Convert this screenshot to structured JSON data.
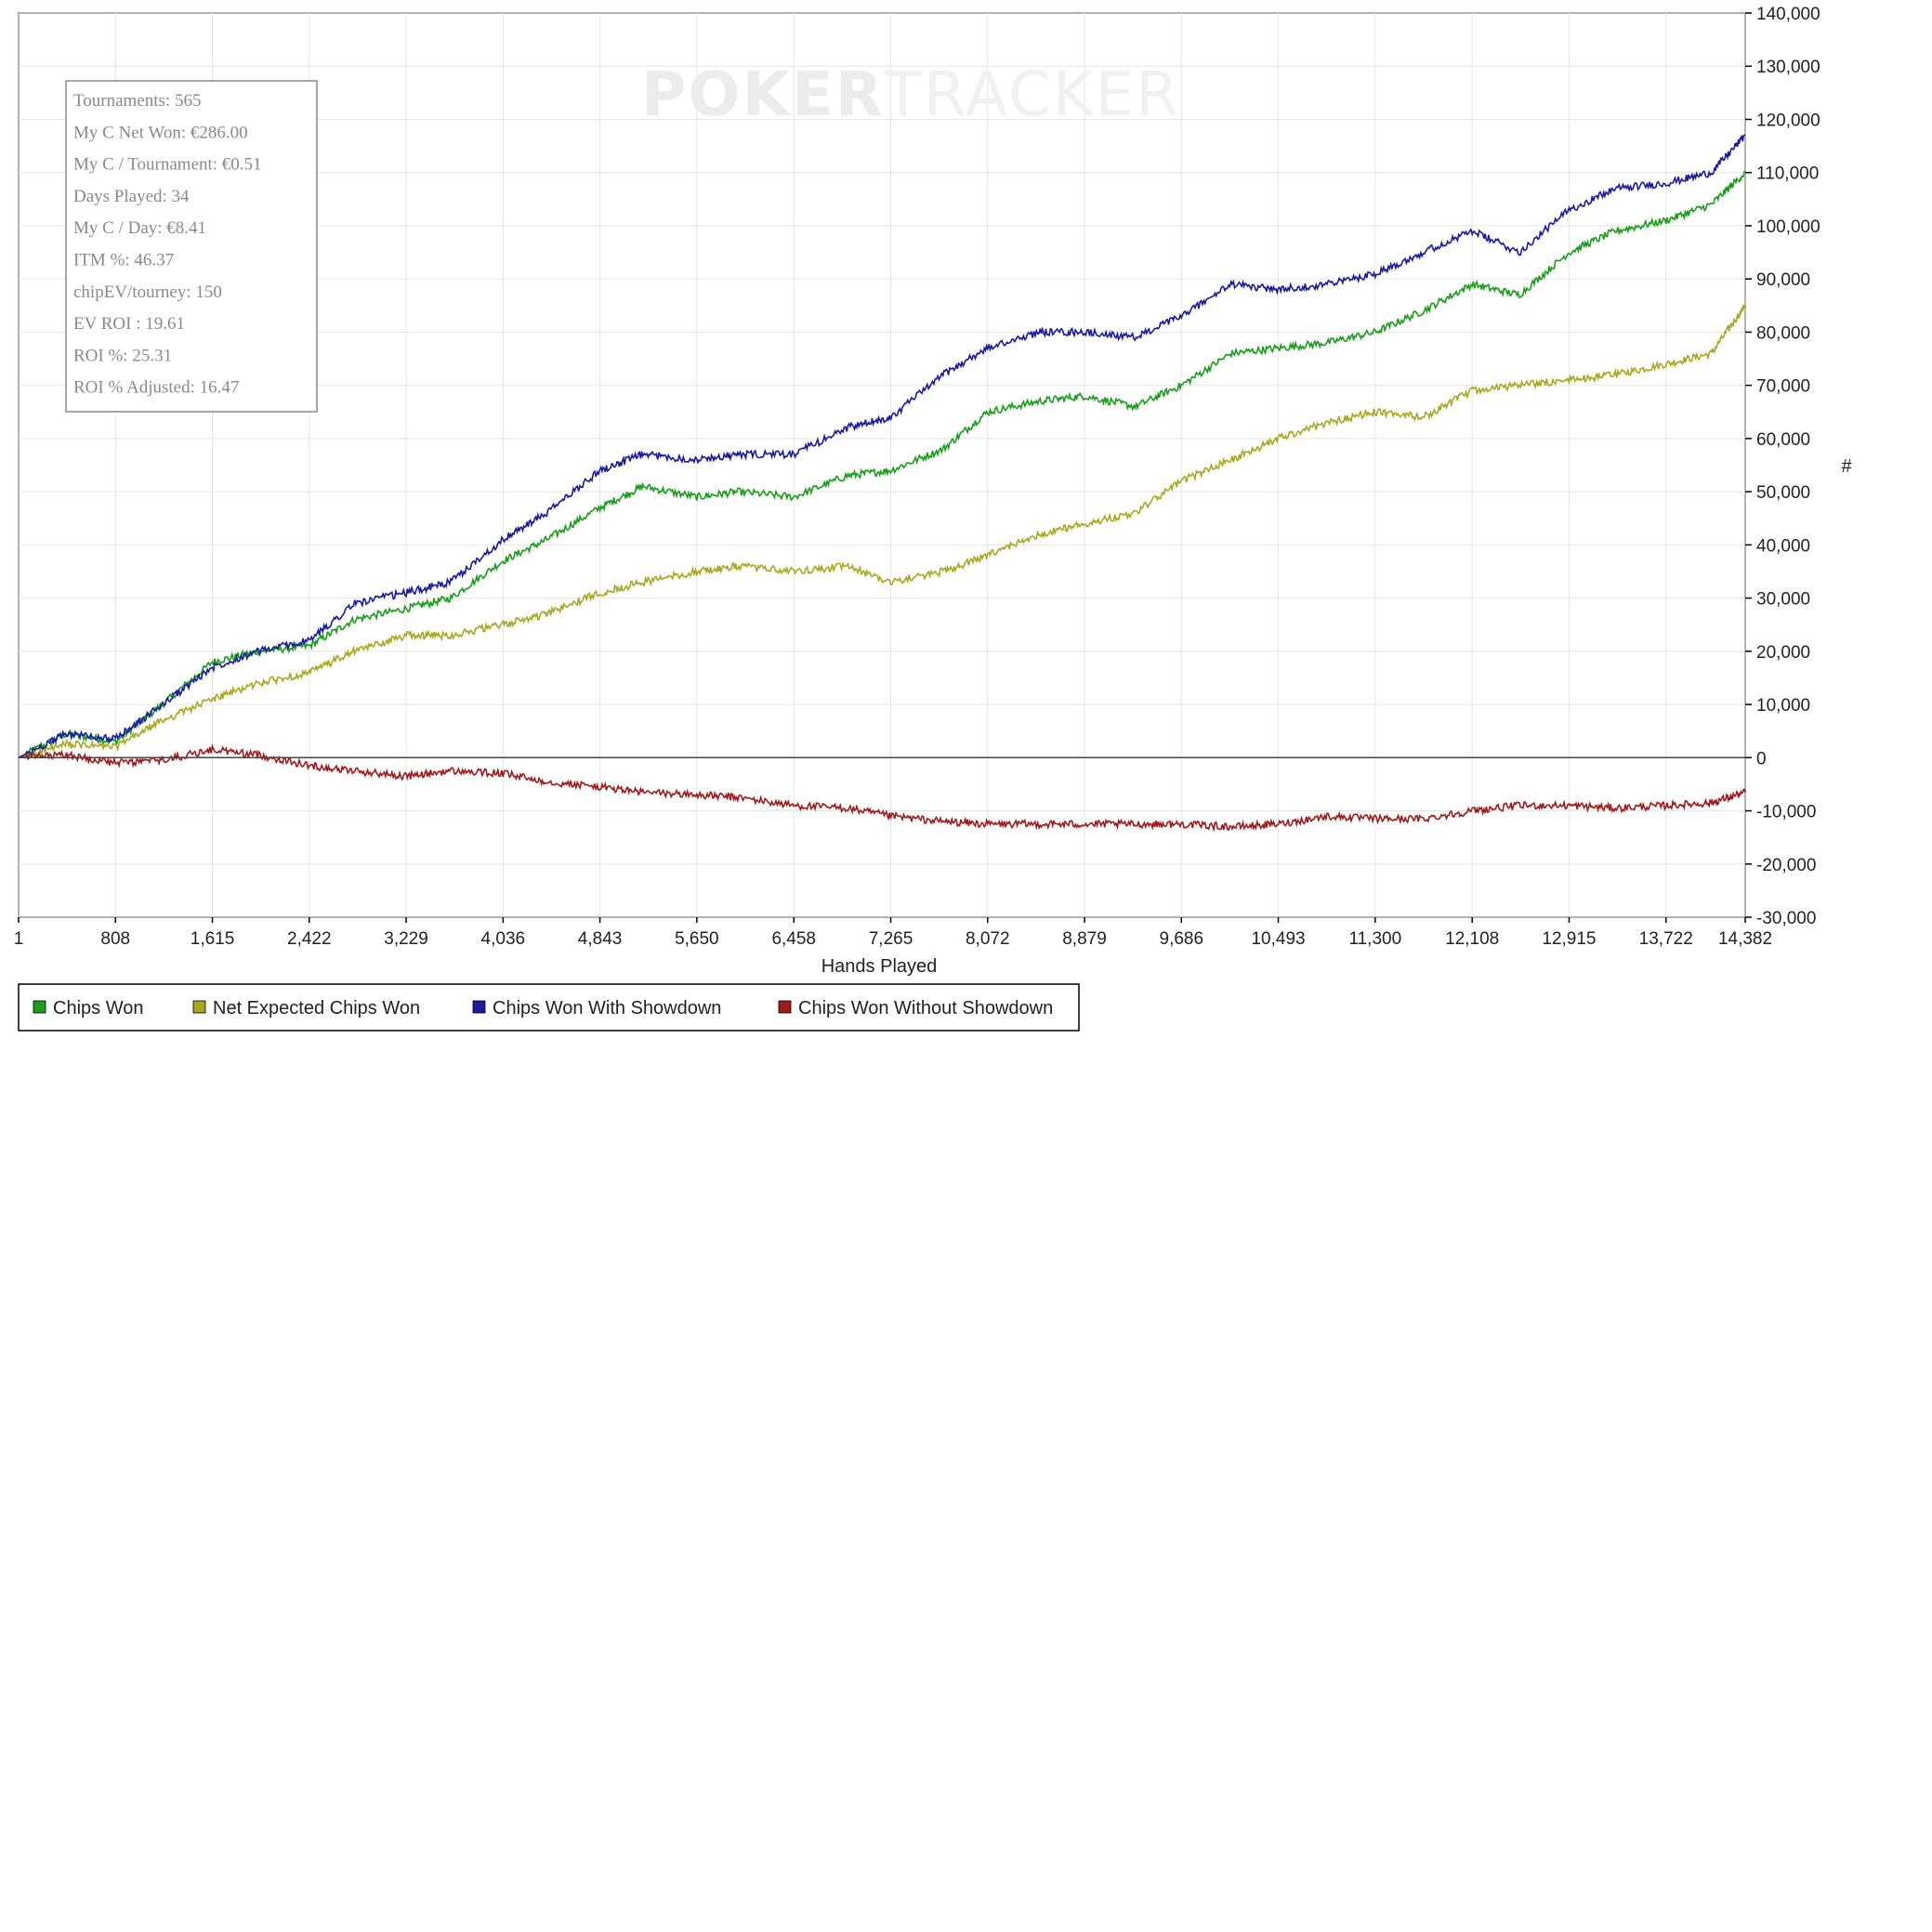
{
  "watermark": {
    "bold_part": "POKER",
    "light_part": "TRACKER"
  },
  "stats_box": {
    "lines": [
      "Tournaments: 565",
      "My C Net Won: €286.00",
      "My C / Tournament: €0.51",
      "Days Played: 34",
      "My C / Day: €8.41",
      "ITM %: 46.37",
      "chipEV/tourney: 150",
      "EV ROI : 19.61",
      "ROI %: 25.31",
      "ROI % Adjusted: 16.47"
    ]
  },
  "legend": [
    {
      "label": "Chips Won",
      "color": "#1a9e1a"
    },
    {
      "label": "Net Expected Chips Won",
      "color": "#a8a820"
    },
    {
      "label": "Chips Won With Showdown",
      "color": "#1a1aa0"
    },
    {
      "label": "Chips Won Without Showdown",
      "color": "#a01a1a"
    }
  ],
  "chart_data": {
    "type": "line",
    "xlabel": "Hands Played",
    "ylabel": "#",
    "xlim": [
      1,
      14382
    ],
    "ylim": [
      -30000,
      140000
    ],
    "x_ticks": [
      "1",
      "808",
      "1,615",
      "2,422",
      "3,229",
      "4,036",
      "4,843",
      "5,650",
      "6,458",
      "7,265",
      "8,072",
      "8,879",
      "9,686",
      "10,493",
      "11,300",
      "12,108",
      "12,915",
      "13,722",
      "14,382"
    ],
    "x_tick_values": [
      1,
      808,
      1615,
      2422,
      3229,
      4036,
      4843,
      5650,
      6458,
      7265,
      8072,
      8879,
      9686,
      10493,
      11300,
      12108,
      12915,
      13722,
      14382
    ],
    "y_ticks": [
      "140,000",
      "130,000",
      "120,000",
      "110,000",
      "100,000",
      "90,000",
      "80,000",
      "70,000",
      "60,000",
      "50,000",
      "40,000",
      "30,000",
      "20,000",
      "10,000",
      "0",
      "-10,000",
      "-20,000",
      "-30,000"
    ],
    "y_tick_values": [
      140000,
      130000,
      120000,
      110000,
      100000,
      90000,
      80000,
      70000,
      60000,
      50000,
      40000,
      30000,
      20000,
      10000,
      0,
      -10000,
      -20000,
      -30000
    ],
    "grid": true,
    "legend_position": "bottom-left",
    "x": [
      1,
      400,
      808,
      1200,
      1615,
      2000,
      2422,
      2800,
      3229,
      3600,
      4036,
      4400,
      4843,
      5200,
      5650,
      6000,
      6458,
      6900,
      7265,
      7700,
      8072,
      8500,
      8879,
      9300,
      9686,
      10100,
      10493,
      10900,
      11300,
      11700,
      12108,
      12500,
      12915,
      13300,
      13722,
      14100,
      14382
    ],
    "series": [
      {
        "name": "Chips Won",
        "color": "#1a9e1a",
        "values": [
          0,
          4500,
          3000,
          10000,
          18000,
          20000,
          21000,
          26000,
          28000,
          30000,
          37000,
          41000,
          47000,
          51000,
          49000,
          50000,
          49000,
          53000,
          54000,
          58000,
          65000,
          67000,
          68000,
          66000,
          70000,
          76000,
          77000,
          78000,
          80000,
          84000,
          89000,
          87000,
          95000,
          99000,
          101000,
          104000,
          110000
        ]
      },
      {
        "name": "Net Expected Chips Won",
        "color": "#a8a820",
        "values": [
          0,
          2500,
          2000,
          7000,
          11000,
          14000,
          16000,
          20000,
          23000,
          23000,
          25000,
          27000,
          31000,
          33000,
          35000,
          36000,
          35000,
          36000,
          33000,
          35000,
          38000,
          42000,
          44000,
          46000,
          52000,
          56000,
          60000,
          63000,
          65000,
          64000,
          69000,
          70000,
          71000,
          72000,
          74000,
          76000,
          85000
        ]
      },
      {
        "name": "Chips Won With Showdown",
        "color": "#1a1aa0",
        "values": [
          0,
          4500,
          3500,
          10000,
          17000,
          20000,
          22000,
          29000,
          31000,
          33000,
          41000,
          46000,
          54000,
          57000,
          56000,
          57000,
          57000,
          62000,
          64000,
          72000,
          77000,
          80000,
          80000,
          79000,
          83000,
          89000,
          88000,
          89000,
          91000,
          95000,
          99000,
          95000,
          103000,
          107000,
          108000,
          110000,
          117000
        ]
      },
      {
        "name": "Chips Won Without Showdown",
        "color": "#a01a1a",
        "values": [
          0,
          500,
          -1000,
          -500,
          1500,
          500,
          -1500,
          -2500,
          -3500,
          -2500,
          -3000,
          -4500,
          -5500,
          -6500,
          -7000,
          -7500,
          -9000,
          -9500,
          -11000,
          -12000,
          -12500,
          -12500,
          -12500,
          -12500,
          -12500,
          -13000,
          -12500,
          -11000,
          -11500,
          -11500,
          -10000,
          -9000,
          -9000,
          -9500,
          -9000,
          -8500,
          -6500
        ]
      }
    ]
  }
}
